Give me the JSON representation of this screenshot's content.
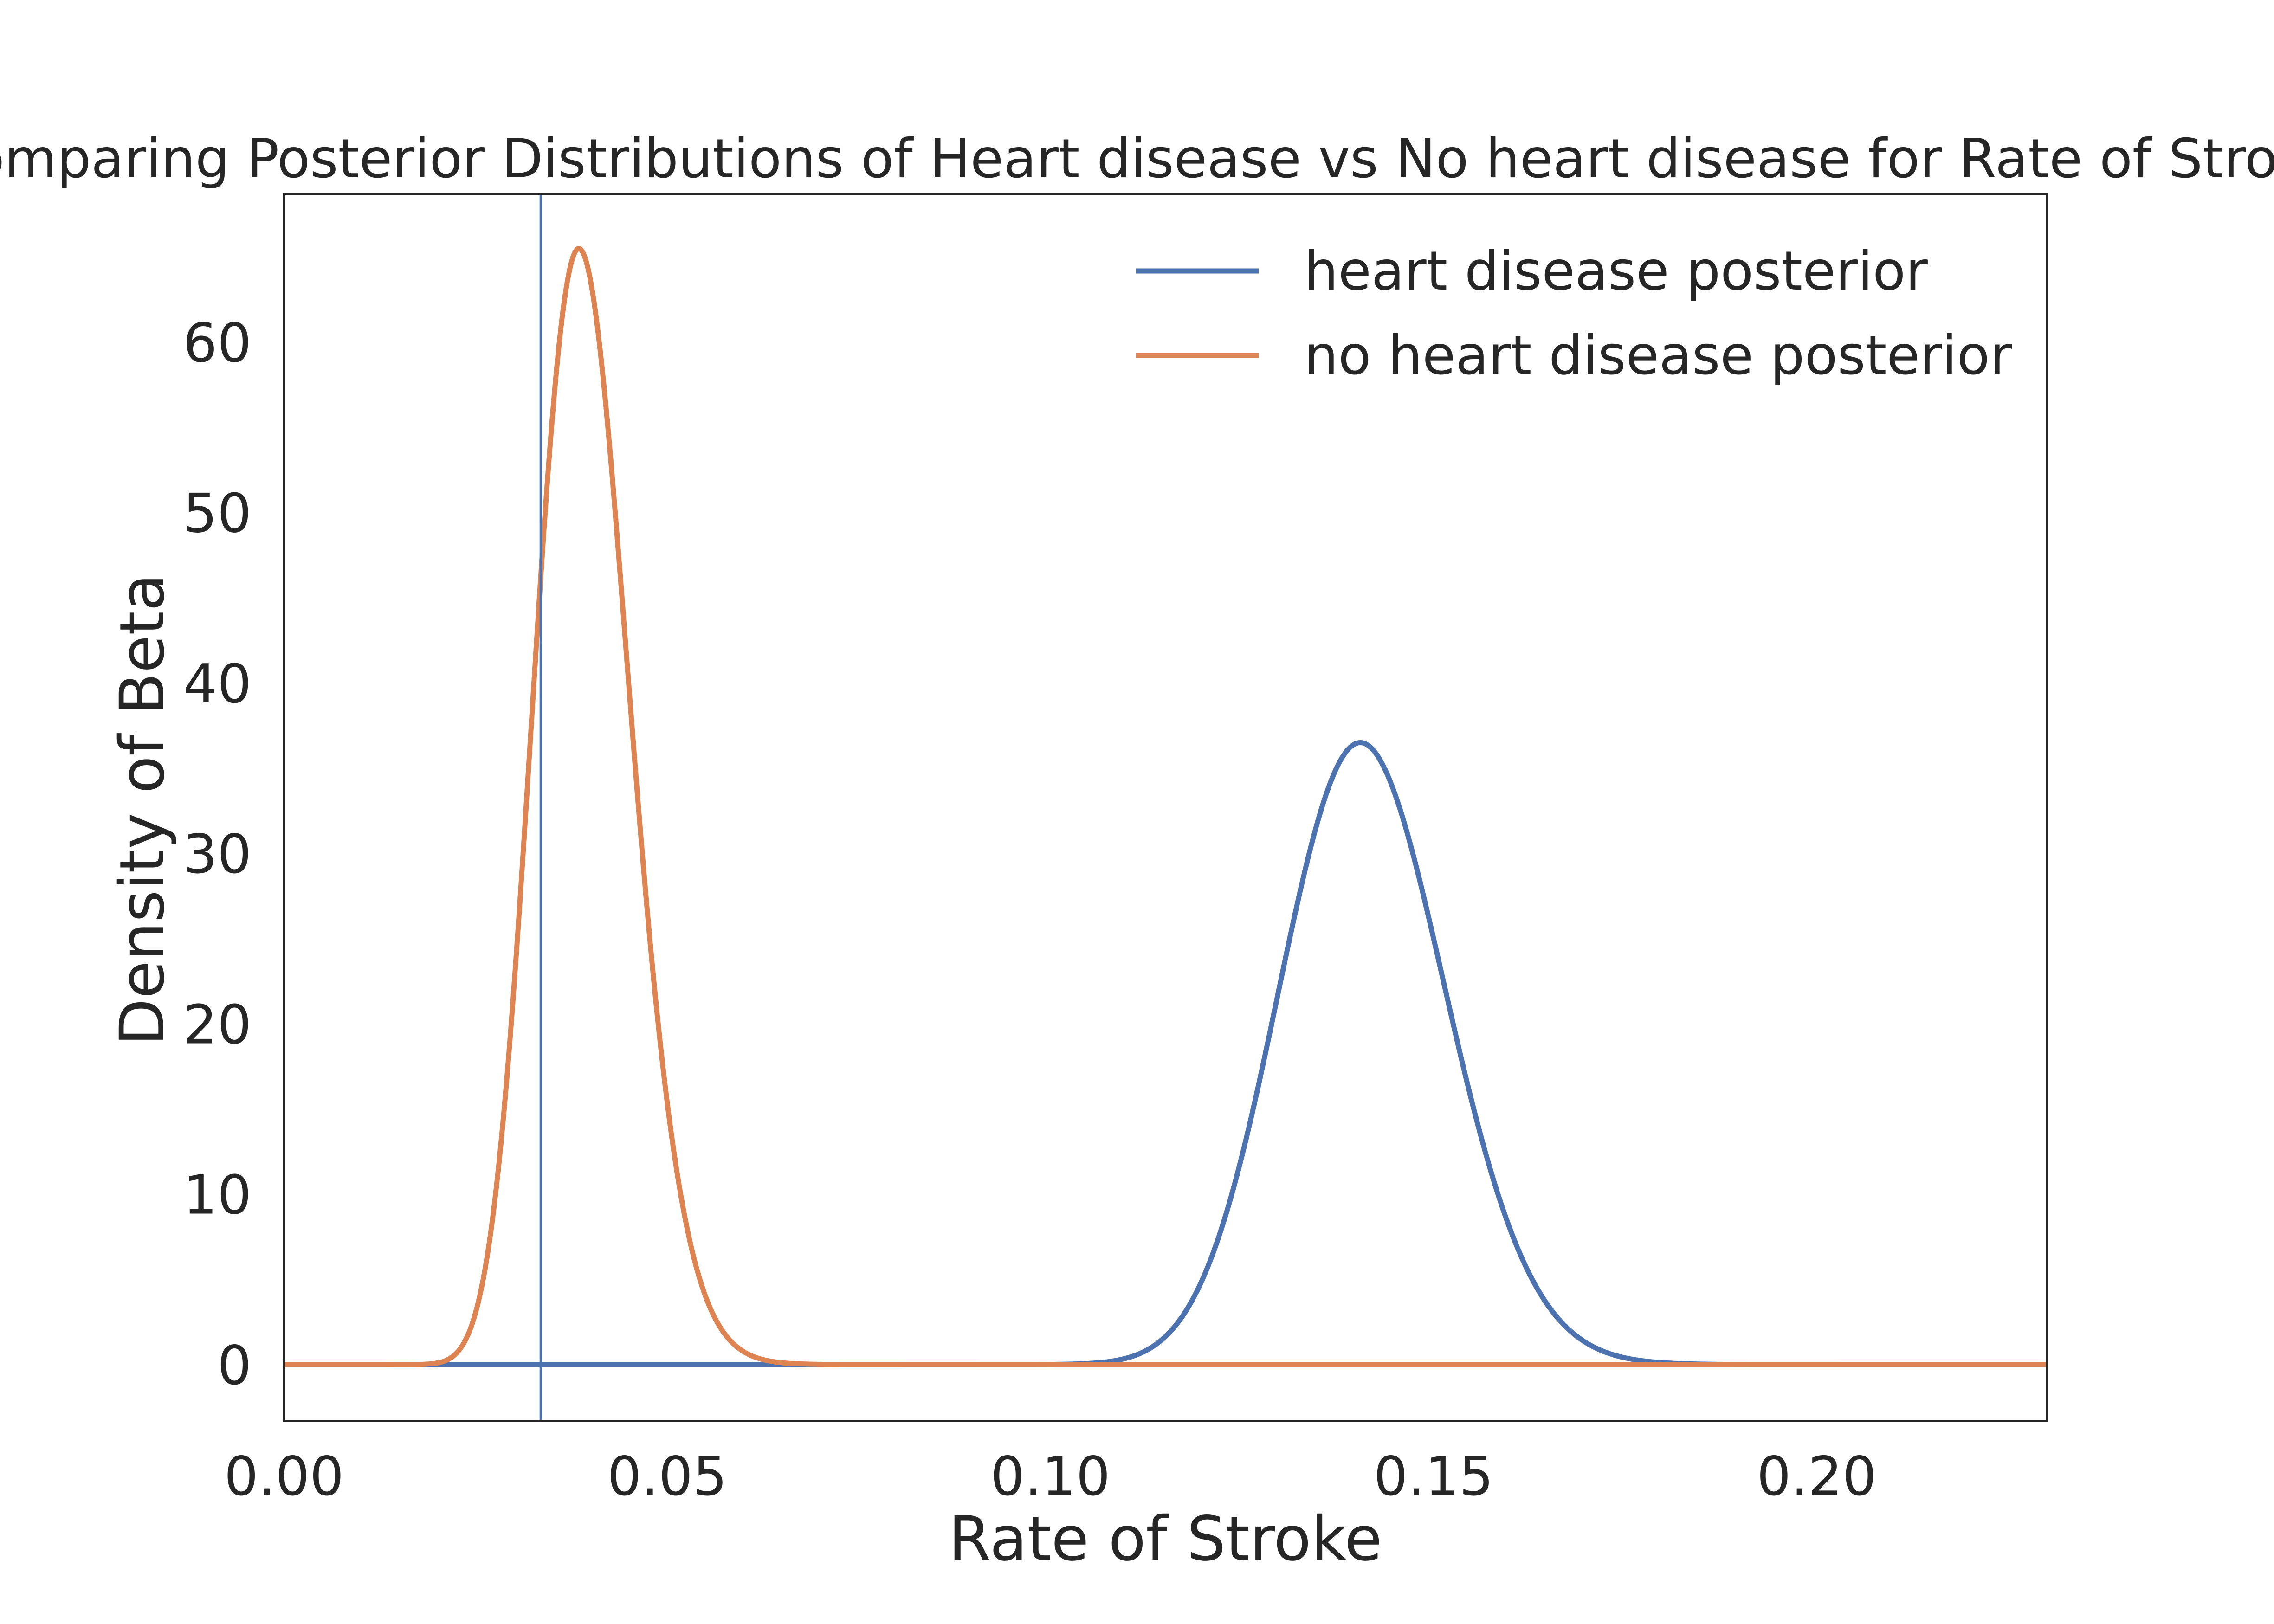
{
  "chart_data": {
    "type": "line",
    "title": "Comparing Posterior Distributions of Heart disease vs No heart disease for Rate of Stroke",
    "xlabel": "Rate of Stroke",
    "ylabel": "Density of Beta",
    "xlim": [
      0.0,
      0.23
    ],
    "ylim": [
      -3.3,
      68.7
    ],
    "xticks": [
      0.0,
      0.05,
      0.1,
      0.15,
      0.2
    ],
    "xtick_labels": [
      "0.00",
      "0.05",
      "0.10",
      "0.15",
      "0.20"
    ],
    "yticks": [
      0,
      10,
      20,
      30,
      40,
      50,
      60
    ],
    "ytick_labels": [
      "0",
      "10",
      "20",
      "30",
      "40",
      "50",
      "60"
    ],
    "grid": false,
    "legend_position": "upper right",
    "series": [
      {
        "name": "heart disease posterior",
        "color": "#4C72B0",
        "distribution": "beta",
        "peak_x": 0.141,
        "peak_y": 36.5,
        "alpha": 146.5,
        "beta": 891.5
      },
      {
        "name": "no heart disease posterior",
        "color": "#DD8452",
        "distribution": "beta",
        "peak_x": 0.0385,
        "peak_y": 65.5,
        "alpha": 37.8,
        "beta": 920.7
      }
    ],
    "annotations": [
      {
        "type": "vline",
        "x": 0.0335,
        "color": "#4C72B0"
      }
    ]
  }
}
